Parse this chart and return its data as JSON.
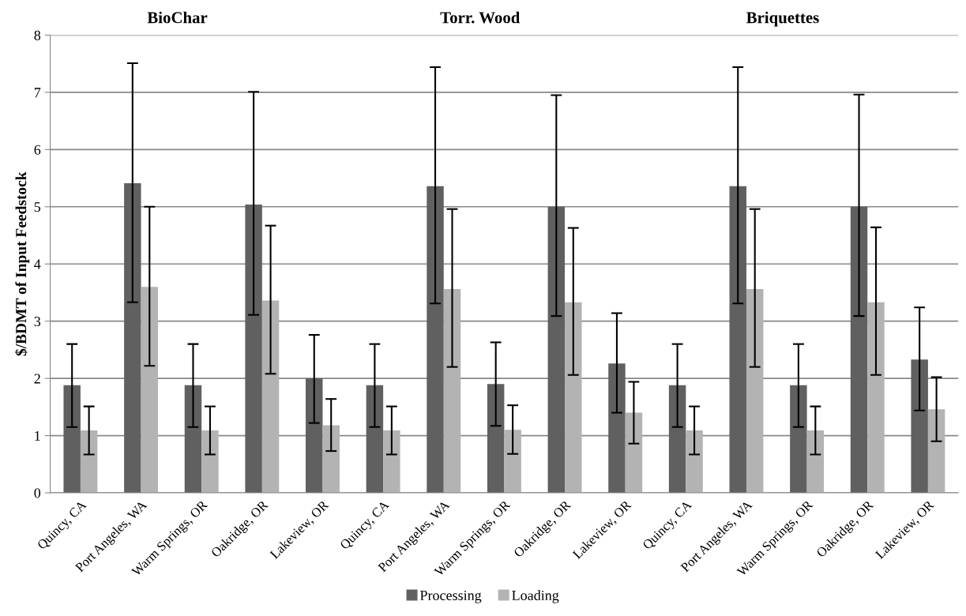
{
  "chart_data": {
    "type": "bar",
    "ylabel": "$/BDMT of Input Feedstock",
    "annotations": [
      "BioChar",
      "Torr. Wood",
      "Briquettes"
    ],
    "categories": [
      "Quincy, CA",
      "Port Angeles, WA",
      "Warm Springs, OR",
      "Oakridge, OR",
      "Lakeview, OR",
      "Quincy, CA",
      "Port Angeles, WA",
      "Warm Springs, OR",
      "Oakridge, OR",
      "Lakeview, OR",
      "Quincy, CA",
      "Port Angeles, WA",
      "Warm Springs, OR",
      "Oakridge, OR",
      "Lakeview, OR"
    ],
    "series": [
      {
        "name": "Processing",
        "color": "#606060",
        "values": [
          1.88,
          5.41,
          1.88,
          5.04,
          2.0,
          1.88,
          5.36,
          1.9,
          5.0,
          2.26,
          1.88,
          5.36,
          1.88,
          5.0,
          2.33
        ],
        "errors": [
          [
            1.15,
            2.6
          ],
          [
            3.33,
            7.51
          ],
          [
            1.15,
            2.6
          ],
          [
            3.11,
            7.01
          ],
          [
            1.22,
            2.76
          ],
          [
            1.15,
            2.6
          ],
          [
            3.31,
            7.44
          ],
          [
            1.17,
            2.63
          ],
          [
            3.09,
            6.95
          ],
          [
            1.4,
            3.14
          ],
          [
            1.15,
            2.6
          ],
          [
            3.31,
            7.44
          ],
          [
            1.15,
            2.6
          ],
          [
            3.09,
            6.96
          ],
          [
            1.44,
            3.24
          ]
        ]
      },
      {
        "name": "Loading",
        "color": "#b3b3b3",
        "values": [
          1.09,
          3.6,
          1.09,
          3.36,
          1.18,
          1.09,
          3.56,
          1.1,
          3.33,
          1.4,
          1.09,
          3.56,
          1.09,
          3.33,
          1.46
        ],
        "errors": [
          [
            0.67,
            1.51
          ],
          [
            2.22,
            5.0
          ],
          [
            0.67,
            1.51
          ],
          [
            2.08,
            4.67
          ],
          [
            0.73,
            1.64
          ],
          [
            0.67,
            1.51
          ],
          [
            2.2,
            4.96
          ],
          [
            0.68,
            1.53
          ],
          [
            2.06,
            4.63
          ],
          [
            0.86,
            1.94
          ],
          [
            0.67,
            1.51
          ],
          [
            2.2,
            4.96
          ],
          [
            0.67,
            1.51
          ],
          [
            2.06,
            4.64
          ],
          [
            0.9,
            2.02
          ]
        ]
      }
    ],
    "ylim": [
      0,
      8
    ],
    "yticks": [
      0,
      1,
      2,
      3,
      4,
      5,
      6,
      7,
      8
    ],
    "grid": "y",
    "legend": "bottom"
  }
}
